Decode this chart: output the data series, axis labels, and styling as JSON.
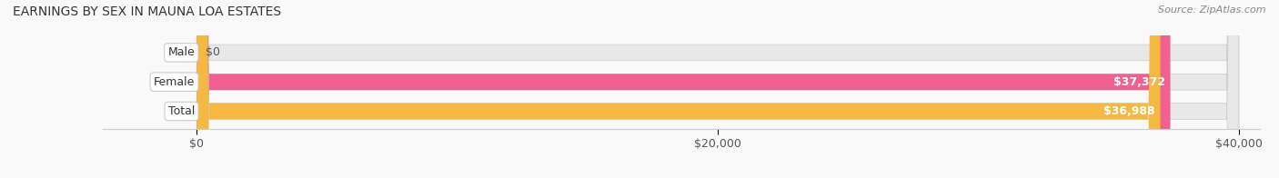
{
  "title": "EARNINGS BY SEX IN MAUNA LOA ESTATES",
  "source": "Source: ZipAtlas.com",
  "categories": [
    "Male",
    "Female",
    "Total"
  ],
  "values": [
    0,
    37372,
    36988
  ],
  "bar_colors": [
    "#a8c4e0",
    "#f06090",
    "#f5b942"
  ],
  "track_color": "#e8e8e8",
  "label_bg_color": "#ffffff",
  "bar_labels": [
    "$0",
    "$37,372",
    "$36,988"
  ],
  "xlim": [
    0,
    40000
  ],
  "xticks": [
    0,
    20000,
    40000
  ],
  "xticklabels": [
    "$0",
    "$20,000",
    "$40,000"
  ],
  "title_fontsize": 10,
  "source_fontsize": 8,
  "label_fontsize": 9,
  "tick_fontsize": 9,
  "bar_height": 0.55,
  "background_color": "#f9f9f9"
}
